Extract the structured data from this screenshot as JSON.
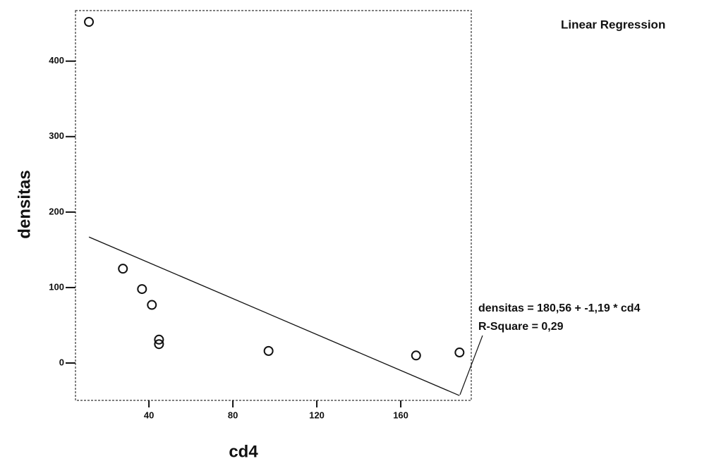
{
  "chart_data": {
    "type": "scatter",
    "title": "Linear Regression",
    "x_label": "cd4",
    "y_label": "densitas",
    "x": [
      11.4,
      27.6,
      36.7,
      41.4,
      44.8,
      44.8,
      97,
      167.3,
      188
    ],
    "values": [
      452,
      125,
      98,
      77,
      31,
      25,
      16,
      10,
      14
    ],
    "xlim": [
      5,
      193.6
    ],
    "ylim": [
      -49.5,
      467
    ],
    "xticks": [
      40,
      80,
      120,
      160
    ],
    "yticks": [
      0,
      100,
      200,
      300,
      400
    ],
    "regression": {
      "intercept": 180.56,
      "slope": -1.19,
      "equation": "densitas = 180,56 + -1,19 * cd4",
      "r_square": "R-Square = 0,29"
    },
    "color": "#111111"
  }
}
